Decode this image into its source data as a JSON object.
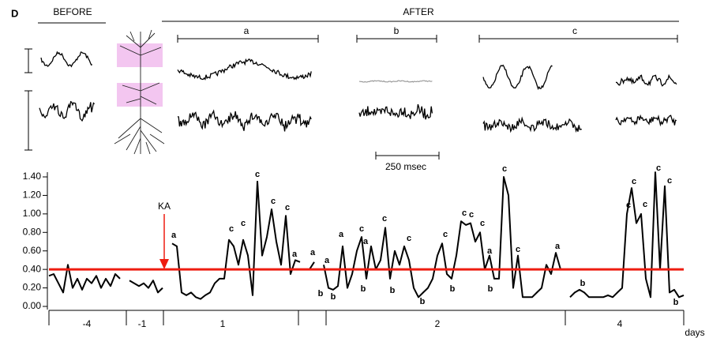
{
  "panel_label": "D",
  "header": {
    "before": "BEFORE",
    "after": "AFTER",
    "epochs": [
      "a",
      "b",
      "c"
    ],
    "scale_bar": "250 msec"
  },
  "chart_data": {
    "type": "line",
    "values": [
      0.33,
      0.35,
      0.25,
      0.15,
      0.45,
      0.2,
      0.3,
      0.18,
      0.3,
      0.25,
      0.33,
      0.2,
      0.3,
      0.22,
      0.35,
      0.3,
      null,
      0.28,
      0.25,
      0.22,
      0.25,
      0.2,
      0.28,
      0.15,
      0.2,
      null,
      0.68,
      0.65,
      0.15,
      0.12,
      0.15,
      0.1,
      0.08,
      0.12,
      0.15,
      0.25,
      0.3,
      0.3,
      0.72,
      0.65,
      0.45,
      0.72,
      0.55,
      0.12,
      1.35,
      0.55,
      0.75,
      1.05,
      0.7,
      0.45,
      0.98,
      0.35,
      0.5,
      0.48,
      null,
      0.4,
      0.48,
      null,
      0.45,
      0.2,
      0.18,
      0.22,
      0.65,
      0.2,
      0.35,
      0.6,
      0.75,
      0.3,
      0.65,
      0.4,
      0.5,
      0.85,
      0.3,
      0.6,
      0.45,
      0.65,
      0.5,
      0.2,
      0.1,
      0.15,
      0.2,
      0.3,
      0.55,
      0.68,
      0.35,
      0.3,
      0.55,
      0.92,
      0.88,
      0.9,
      0.7,
      0.8,
      0.4,
      0.55,
      0.3,
      0.3,
      1.4,
      1.2,
      0.2,
      0.55,
      0.1,
      0.1,
      0.1,
      0.15,
      0.2,
      0.45,
      0.35,
      0.58,
      0.4,
      null,
      0.1,
      0.15,
      0.18,
      0.15,
      0.1,
      0.1,
      0.1,
      0.1,
      0.12,
      0.1,
      0.15,
      0.2,
      1.0,
      1.28,
      0.9,
      1.0,
      0.3,
      0.1,
      1.45,
      0.4,
      1.3,
      0.15,
      0.18,
      0.1,
      0.12
    ],
    "color": "#000000",
    "ylim": [
      0,
      1.4
    ],
    "yticks": [
      {
        "value": 0,
        "label": "0.00"
      },
      {
        "value": 0.2,
        "label": "0.20"
      },
      {
        "value": 0.4,
        "label": "0.40"
      },
      {
        "value": 0.6,
        "label": "0.60"
      },
      {
        "value": 0.8,
        "label": "0.80"
      },
      {
        "value": 1.0,
        "label": "1.00"
      },
      {
        "value": 1.2,
        "label": "1.20"
      },
      {
        "value": 1.4,
        "label": "1.40"
      }
    ],
    "xtick_labels": [
      "-4",
      "-1",
      "1",
      "2",
      "4"
    ],
    "x_unit": "days",
    "threshold": 0.4,
    "threshold_color": "#ee1c10",
    "event": "KA",
    "annotations": [
      "a",
      "c",
      "c",
      "c",
      "c",
      "c",
      "a",
      "a",
      "a",
      "b",
      "b",
      "a",
      "c",
      "a",
      "b",
      "c",
      "b",
      "c",
      "b",
      "c",
      "b",
      "c",
      "c",
      "c",
      "a",
      "b",
      "c",
      "c",
      "a",
      "b",
      "c",
      "c",
      "c",
      "c",
      "c",
      "b"
    ]
  }
}
